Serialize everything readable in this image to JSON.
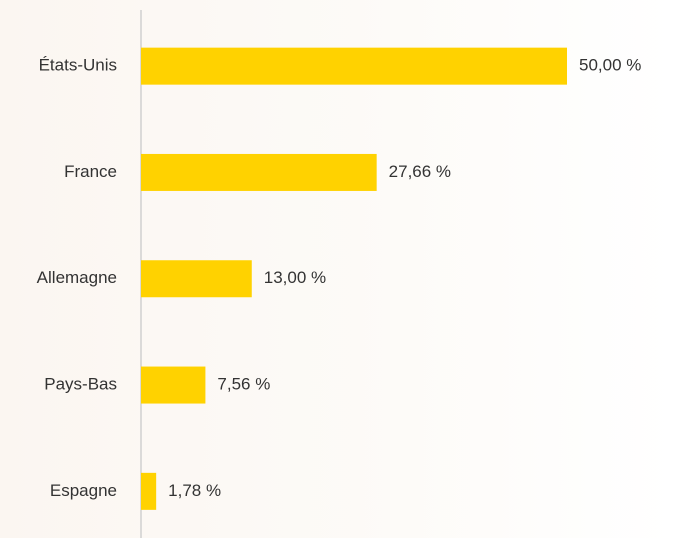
{
  "chart_data": {
    "type": "bar",
    "orientation": "horizontal",
    "categories": [
      "États-Unis",
      "France",
      "Allemagne",
      "Pays-Bas",
      "Espagne"
    ],
    "values": [
      50,
      27.66,
      13,
      7.56,
      1.78
    ],
    "value_labels": [
      "50,00 %",
      "27,66 %",
      "13,00 %",
      "7,56 %",
      "1,78 %"
    ],
    "color": "#ffd200"
  }
}
